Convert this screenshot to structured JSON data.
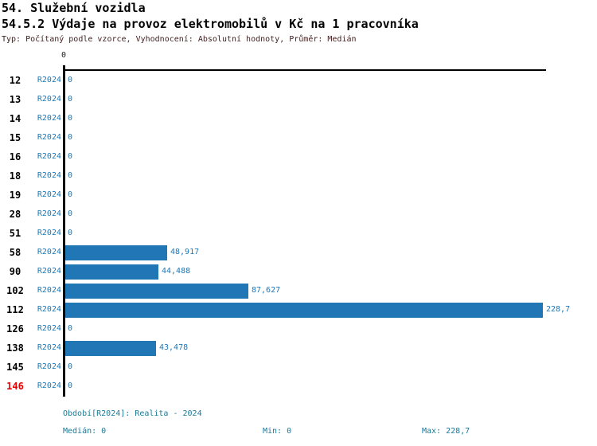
{
  "header": {
    "title1": "54. Služební vozidla",
    "title2": "54.5.2 Výdaje na provoz elektromobilů v Kč na 1 pracovníka",
    "subtitle": "Typ: Počítaný podle vzorce, Vyhodnocení: Absolutní hodnoty, Průměr: Medián"
  },
  "chart_data": {
    "type": "bar",
    "orientation": "horizontal",
    "title": "54.5.2 Výdaje na provoz elektromobilů v Kč na 1 pracovníka",
    "xlabel": "Kč na 1 pracovníka",
    "ylabel": "",
    "xlim": [
      0,
      228.7
    ],
    "axis_tick_labels": [
      "0"
    ],
    "series_label": "R2024",
    "categories": [
      "12",
      "13",
      "14",
      "15",
      "16",
      "18",
      "19",
      "28",
      "51",
      "58",
      "90",
      "102",
      "112",
      "126",
      "138",
      "145",
      "146"
    ],
    "values": [
      0,
      0,
      0,
      0,
      0,
      0,
      0,
      0,
      0,
      48.917,
      44.488,
      87.627,
      228.7,
      0,
      43.478,
      0,
      0
    ],
    "value_labels": [
      "0",
      "0",
      "0",
      "0",
      "0",
      "0",
      "0",
      "0",
      "0",
      "48,917",
      "44,488",
      "87,627",
      "228,7",
      "0",
      "43,478",
      "0",
      "0"
    ],
    "highlight_categories": [
      "146"
    ],
    "bar_color": "#2176b5",
    "value_text_color": "#1f77b4",
    "highlight_color": "#e60000",
    "legend_position": "none",
    "grid": false
  },
  "footer": {
    "period": "Období[R2024]: Realita - 2024",
    "median": "Medián: 0",
    "min": "Min: 0",
    "max": "Max: 228,7"
  }
}
